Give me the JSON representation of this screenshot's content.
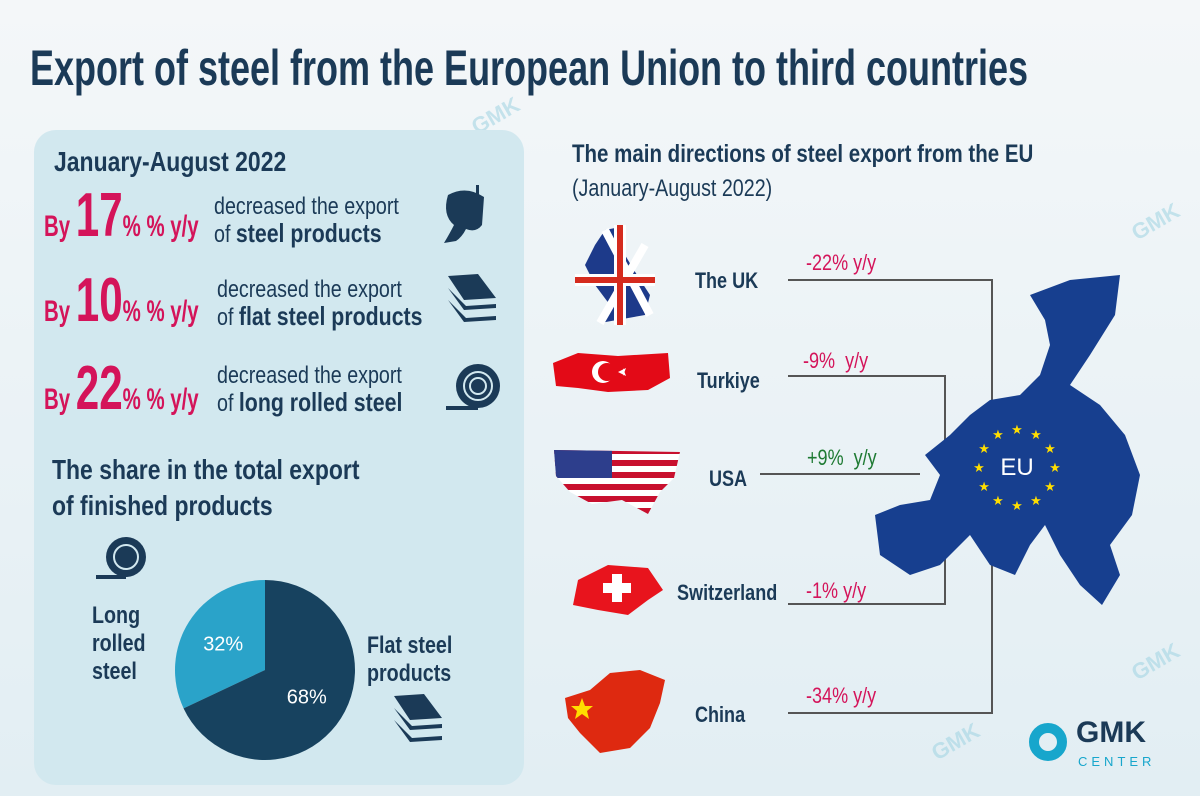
{
  "title": "Export of steel from the European Union to third countries",
  "left_panel": {
    "period": "January-August 2022",
    "stats": [
      {
        "prefix": "By",
        "value": "17",
        "suffix": "% % y/y",
        "line1": "decreased the export",
        "line2_prefix": "of",
        "line2_bold": "steel products",
        "icon": "ladle-icon"
      },
      {
        "prefix": "By",
        "value": "10",
        "suffix": "% % y/y",
        "line1": "decreased the export",
        "line2_prefix": "of",
        "line2_bold": "flat steel products",
        "icon": "steel-sheets-icon"
      },
      {
        "prefix": "By",
        "value": "22",
        "suffix": "% % y/y",
        "line1": "decreased the export",
        "line2_prefix": "of",
        "line2_bold": "long rolled steel",
        "icon": "steel-coil-icon"
      }
    ],
    "share_title_1": "The share in the total export",
    "share_title_2": "of finished products"
  },
  "chart_data": {
    "type": "pie",
    "title": "The share in the total export of finished products",
    "slices": [
      {
        "name": "Long rolled steel",
        "label_lines": [
          "Long",
          "rolled",
          "steel"
        ],
        "value": 32,
        "label": "32%",
        "color": "#2aa3c9"
      },
      {
        "name": "Flat steel products",
        "label_lines": [
          "Flat steel",
          "products"
        ],
        "value": 68,
        "label": "68%",
        "color": "#17425f"
      }
    ]
  },
  "right": {
    "title": "The main directions of steel export from the EU",
    "subtitle": "(January-August 2022)",
    "eu_label": "EU",
    "countries": [
      {
        "name": "The UK",
        "change": "-22% y/y",
        "color": "#d4145a"
      },
      {
        "name": "Turkiye",
        "change": "-9%  y/y",
        "color": "#d4145a"
      },
      {
        "name": "USA",
        "change": "+9%  y/y",
        "color": "#1e7a33"
      },
      {
        "name": "Switzerland",
        "change": "-1% y/y",
        "color": "#d4145a"
      },
      {
        "name": "China",
        "change": "-34% y/y",
        "color": "#d4145a"
      }
    ]
  },
  "logo": {
    "line1": "GMK",
    "line2": "CENTER"
  },
  "colors": {
    "accent": "#d4145a",
    "navy": "#1b3a57",
    "eu_blue": "#173f8f",
    "positive": "#1e7a33"
  }
}
